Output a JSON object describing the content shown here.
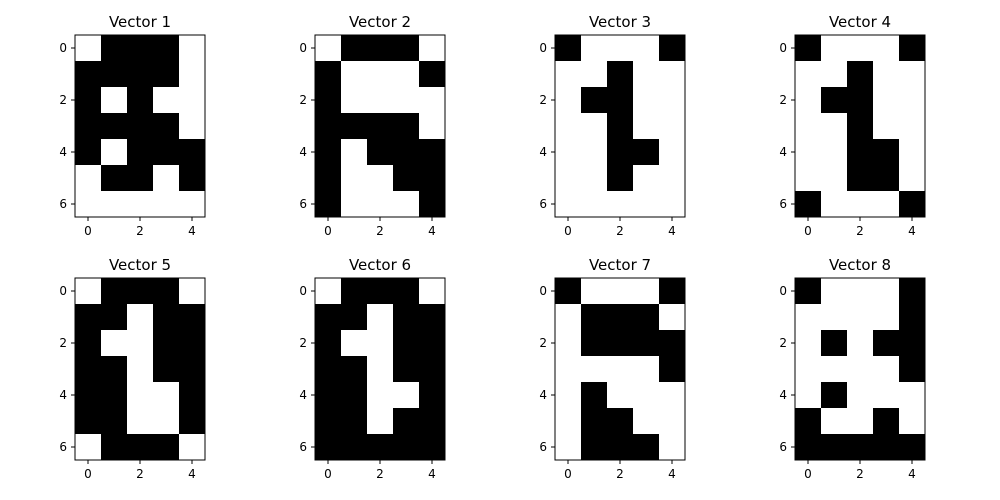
{
  "chart_data": [
    {
      "type": "heatmap",
      "title": "Vector 1",
      "rows": 7,
      "cols": 5,
      "xticks": [
        "0",
        "2",
        "4"
      ],
      "yticks": [
        "0",
        "2",
        "4",
        "6"
      ],
      "values": [
        [
          0,
          1,
          1,
          1,
          0
        ],
        [
          1,
          1,
          1,
          1,
          0
        ],
        [
          1,
          0,
          1,
          0,
          0
        ],
        [
          1,
          1,
          1,
          1,
          0
        ],
        [
          1,
          0,
          1,
          1,
          1
        ],
        [
          0,
          1,
          1,
          0,
          1
        ],
        [
          0,
          0,
          0,
          0,
          0
        ]
      ]
    },
    {
      "type": "heatmap",
      "title": "Vector 2",
      "rows": 7,
      "cols": 5,
      "xticks": [
        "0",
        "2",
        "4"
      ],
      "yticks": [
        "0",
        "2",
        "4",
        "6"
      ],
      "values": [
        [
          0,
          1,
          1,
          1,
          0
        ],
        [
          1,
          0,
          0,
          0,
          1
        ],
        [
          1,
          0,
          0,
          0,
          0
        ],
        [
          1,
          1,
          1,
          1,
          0
        ],
        [
          1,
          0,
          1,
          1,
          1
        ],
        [
          1,
          0,
          0,
          1,
          1
        ],
        [
          1,
          0,
          0,
          0,
          1
        ]
      ]
    },
    {
      "type": "heatmap",
      "title": "Vector 3",
      "rows": 7,
      "cols": 5,
      "xticks": [
        "0",
        "2",
        "4"
      ],
      "yticks": [
        "0",
        "2",
        "4",
        "6"
      ],
      "values": [
        [
          1,
          0,
          0,
          0,
          1
        ],
        [
          0,
          0,
          1,
          0,
          0
        ],
        [
          0,
          1,
          1,
          0,
          0
        ],
        [
          0,
          0,
          1,
          0,
          0
        ],
        [
          0,
          0,
          1,
          1,
          0
        ],
        [
          0,
          0,
          1,
          0,
          0
        ],
        [
          0,
          0,
          0,
          0,
          0
        ]
      ]
    },
    {
      "type": "heatmap",
      "title": "Vector 4",
      "rows": 7,
      "cols": 5,
      "xticks": [
        "0",
        "2",
        "4"
      ],
      "yticks": [
        "0",
        "2",
        "4",
        "6"
      ],
      "values": [
        [
          1,
          0,
          0,
          0,
          1
        ],
        [
          0,
          0,
          1,
          0,
          0
        ],
        [
          0,
          1,
          1,
          0,
          0
        ],
        [
          0,
          0,
          1,
          0,
          0
        ],
        [
          0,
          0,
          1,
          1,
          0
        ],
        [
          0,
          0,
          1,
          1,
          0
        ],
        [
          1,
          0,
          0,
          0,
          1
        ]
      ]
    },
    {
      "type": "heatmap",
      "title": "Vector 5",
      "rows": 7,
      "cols": 5,
      "xticks": [
        "0",
        "2",
        "4"
      ],
      "yticks": [
        "0",
        "2",
        "4",
        "6"
      ],
      "values": [
        [
          0,
          1,
          1,
          1,
          0
        ],
        [
          1,
          1,
          0,
          1,
          1
        ],
        [
          1,
          0,
          0,
          1,
          1
        ],
        [
          1,
          1,
          0,
          1,
          1
        ],
        [
          1,
          1,
          0,
          0,
          1
        ],
        [
          1,
          1,
          0,
          0,
          1
        ],
        [
          0,
          1,
          1,
          1,
          0
        ]
      ]
    },
    {
      "type": "heatmap",
      "title": "Vector 6",
      "rows": 7,
      "cols": 5,
      "xticks": [
        "0",
        "2",
        "4"
      ],
      "yticks": [
        "0",
        "2",
        "4",
        "6"
      ],
      "values": [
        [
          0,
          1,
          1,
          1,
          0
        ],
        [
          1,
          1,
          0,
          1,
          1
        ],
        [
          1,
          0,
          0,
          1,
          1
        ],
        [
          1,
          1,
          0,
          1,
          1
        ],
        [
          1,
          1,
          0,
          0,
          1
        ],
        [
          1,
          1,
          0,
          1,
          1
        ],
        [
          1,
          1,
          1,
          1,
          1
        ]
      ]
    },
    {
      "type": "heatmap",
      "title": "Vector 7",
      "rows": 7,
      "cols": 5,
      "xticks": [
        "0",
        "2",
        "4"
      ],
      "yticks": [
        "0",
        "2",
        "4",
        "6"
      ],
      "values": [
        [
          1,
          0,
          0,
          0,
          1
        ],
        [
          0,
          1,
          1,
          1,
          0
        ],
        [
          0,
          1,
          1,
          1,
          1
        ],
        [
          0,
          0,
          0,
          0,
          1
        ],
        [
          0,
          1,
          0,
          0,
          0
        ],
        [
          0,
          1,
          1,
          0,
          0
        ],
        [
          0,
          1,
          1,
          1,
          0
        ]
      ]
    },
    {
      "type": "heatmap",
      "title": "Vector 8",
      "rows": 7,
      "cols": 5,
      "xticks": [
        "0",
        "2",
        "4"
      ],
      "yticks": [
        "0",
        "2",
        "4",
        "6"
      ],
      "values": [
        [
          1,
          0,
          0,
          0,
          1
        ],
        [
          0,
          0,
          0,
          0,
          1
        ],
        [
          0,
          1,
          0,
          1,
          1
        ],
        [
          0,
          0,
          0,
          0,
          1
        ],
        [
          0,
          1,
          0,
          0,
          0
        ],
        [
          1,
          0,
          0,
          1,
          0
        ],
        [
          1,
          1,
          1,
          1,
          1
        ]
      ]
    }
  ],
  "colors": {
    "on": "#000000",
    "off": "#ffffff",
    "axis": "#000000"
  }
}
